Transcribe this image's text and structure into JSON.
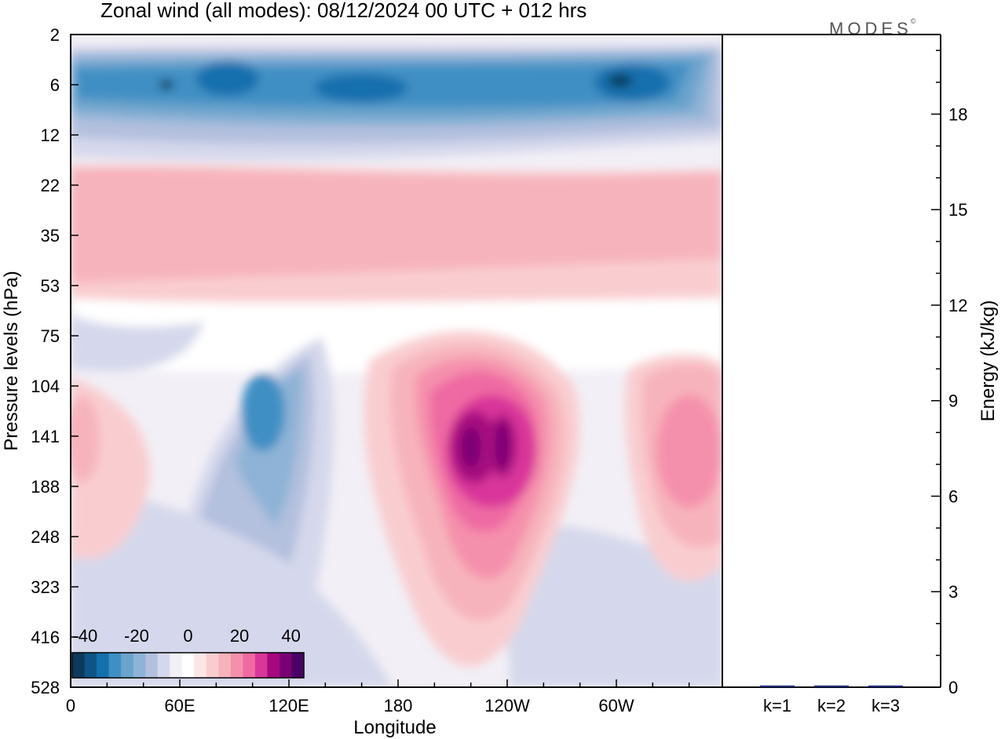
{
  "chart_data": [
    {
      "type": "heatmap",
      "title": "Zonal wind (all modes):  08/12/2024  00 UTC  + 012 hrs",
      "xlabel": "Longitude",
      "ylabel": "Pressure levels (hPa)",
      "x_ticks": [
        "0",
        "60E",
        "120E",
        "180",
        "120W",
        "60W"
      ],
      "y_ticks": [
        "2",
        "6",
        "12",
        "22",
        "35",
        "53",
        "75",
        "104",
        "141",
        "188",
        "248",
        "323",
        "416",
        "528"
      ],
      "y_reversed": true,
      "colorbar": {
        "ticks": [
          "-40",
          "-20",
          "0",
          "20",
          "40"
        ],
        "range": [
          -45,
          45
        ],
        "colors": [
          "#0d3a5c",
          "#0e5585",
          "#1470ad",
          "#3f8fc4",
          "#6aa3cc",
          "#8eb3d6",
          "#b3c0de",
          "#d5d8ec",
          "#f2eff6",
          "#ffffff",
          "#fbe6e6",
          "#f9cdd0",
          "#f7b3bc",
          "#f590ac",
          "#ef6aa3",
          "#d9369a",
          "#a6087f",
          "#7a0175",
          "#4a0064"
        ]
      },
      "features": [
        {
          "kind": "upper-stratospheric easterly band",
          "levels_hPa": [
            2,
            20
          ],
          "min_value": -40
        },
        {
          "kind": "westerly jet core",
          "longitude": "~140W",
          "level_hPa": 141,
          "max_value": 40
        },
        {
          "kind": "westerly maximum",
          "longitude": "~30W",
          "level_hPa": 141,
          "max_value": 20
        },
        {
          "kind": "easterly tongue",
          "longitude": "~100E",
          "level_hPa": 120,
          "min_value": -25
        }
      ]
    },
    {
      "type": "bar",
      "categories": [
        "k=1",
        "k=2",
        "k=3"
      ],
      "values": [
        0.05,
        0.05,
        0.02
      ],
      "ylabel": "Energy (kJ/kg)",
      "y_ticks": [
        "0",
        "3",
        "6",
        "9",
        "12",
        "15",
        "18"
      ],
      "ylim": [
        0,
        20.5
      ]
    }
  ],
  "logo_text": "MODES",
  "logo_mark": "©"
}
